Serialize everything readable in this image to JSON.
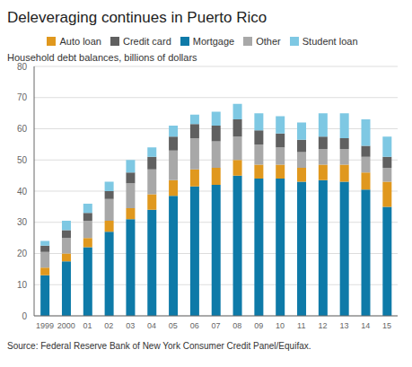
{
  "chart_data": {
    "type": "bar",
    "title": "Deleveraging continues in Puerto Rico",
    "ylabel": "Household debt balances, billions of dollars",
    "source": "Source: Federal Reserve Bank of New York Consumer Credit Panel/Equifax.",
    "categories": [
      "1999",
      "2000",
      "01",
      "02",
      "03",
      "04",
      "05",
      "06",
      "07",
      "08",
      "09",
      "10",
      "11",
      "12",
      "13",
      "14",
      "15"
    ],
    "series": [
      {
        "name": "Mortgage",
        "color": "#0e7aa8",
        "values": [
          13.0,
          17.5,
          22.0,
          27.0,
          31.0,
          34.0,
          38.5,
          41.5,
          42.0,
          45.0,
          44.0,
          44.0,
          43.0,
          43.5,
          43.0,
          40.5,
          35.0
        ]
      },
      {
        "name": "Auto loan",
        "color": "#e0981e",
        "values": [
          2.5,
          2.5,
          3.0,
          3.5,
          3.5,
          5.0,
          5.0,
          5.5,
          5.5,
          5.0,
          4.5,
          4.5,
          4.5,
          5.0,
          5.5,
          5.5,
          8.0
        ]
      },
      {
        "name": "Other",
        "color": "#a8a8a8",
        "values": [
          5.0,
          5.0,
          5.5,
          7.0,
          8.0,
          8.0,
          9.5,
          10.0,
          8.5,
          7.5,
          6.5,
          5.5,
          5.0,
          5.0,
          5.0,
          5.0,
          4.5
        ]
      },
      {
        "name": "Credit card",
        "color": "#606060",
        "values": [
          2.0,
          2.5,
          2.5,
          2.5,
          3.5,
          4.0,
          4.5,
          4.5,
          5.0,
          5.5,
          4.5,
          4.5,
          4.0,
          4.0,
          3.5,
          3.5,
          3.5
        ]
      },
      {
        "name": "Student loan",
        "color": "#7ec8e3",
        "values": [
          1.5,
          3.0,
          3.0,
          3.0,
          4.0,
          3.0,
          3.5,
          3.0,
          4.5,
          5.0,
          5.5,
          5.5,
          5.5,
          7.5,
          8.0,
          8.5,
          6.5
        ]
      }
    ],
    "ylim": [
      0,
      80
    ],
    "yticks": [
      0,
      10,
      20,
      30,
      40,
      50,
      60,
      70,
      80
    ],
    "stacked": true,
    "grid": true,
    "legend": "top"
  }
}
